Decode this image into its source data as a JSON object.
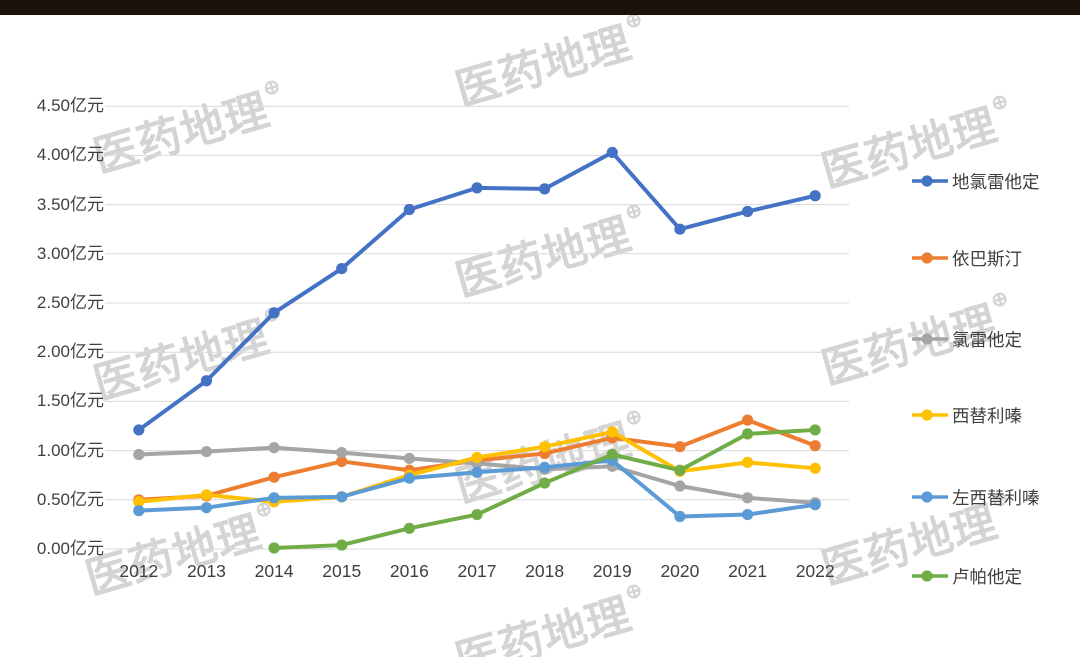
{
  "watermark": {
    "text": "医药地理",
    "badge_symbol": "⊕"
  },
  "title_bar": {
    "color": "#1b120c"
  },
  "axes": {
    "y_tick_labels": [
      "0.00亿元",
      "0.50亿元",
      "1.00亿元",
      "1.50亿元",
      "2.00亿元",
      "2.50亿元",
      "3.00亿元",
      "3.50亿元",
      "4.00亿元",
      "4.50亿元"
    ],
    "x_tick_labels": [
      "2012",
      "2013",
      "2014",
      "2015",
      "2016",
      "2017",
      "2018",
      "2019",
      "2020",
      "2021",
      "2022"
    ],
    "gridline_color": "#d9d9d9",
    "label_color": "#3f3f3f"
  },
  "chart_data": {
    "type": "line",
    "x": [
      "2012",
      "2013",
      "2014",
      "2015",
      "2016",
      "2017",
      "2018",
      "2019",
      "2020",
      "2021",
      "2022"
    ],
    "unit": "亿元",
    "ylim": [
      0,
      4.5
    ],
    "ytick_interval": 0.5,
    "grid": true,
    "legend_position": "right",
    "series": [
      {
        "name": "地氯雷他定",
        "color": "#4472C4",
        "values": [
          1.21,
          1.71,
          2.4,
          2.85,
          3.45,
          3.67,
          3.66,
          4.03,
          3.25,
          3.43,
          3.59
        ]
      },
      {
        "name": "依巴斯汀",
        "color": "#ED7D31",
        "values": [
          0.5,
          0.54,
          0.73,
          0.89,
          0.8,
          0.9,
          0.97,
          1.13,
          1.04,
          1.31,
          1.05
        ]
      },
      {
        "name": "氯雷他定",
        "color": "#A5A5A5",
        "values": [
          0.96,
          0.99,
          1.03,
          0.98,
          0.92,
          0.87,
          0.81,
          0.84,
          0.64,
          0.52,
          0.47
        ]
      },
      {
        "name": "西替利嗪",
        "color": "#FFC000",
        "values": [
          0.48,
          0.55,
          0.48,
          0.53,
          0.75,
          0.93,
          1.04,
          1.19,
          0.79,
          0.88,
          0.82
        ]
      },
      {
        "name": "左西替利嗪",
        "color": "#5B9BD5",
        "values": [
          0.39,
          0.42,
          0.52,
          0.53,
          0.72,
          0.78,
          0.83,
          0.9,
          0.33,
          0.35,
          0.45
        ]
      },
      {
        "name": "卢帕他定",
        "color": "#70AD47",
        "values": [
          null,
          null,
          0.01,
          0.04,
          0.21,
          0.35,
          0.67,
          0.96,
          0.8,
          1.17,
          1.21
        ]
      }
    ]
  }
}
